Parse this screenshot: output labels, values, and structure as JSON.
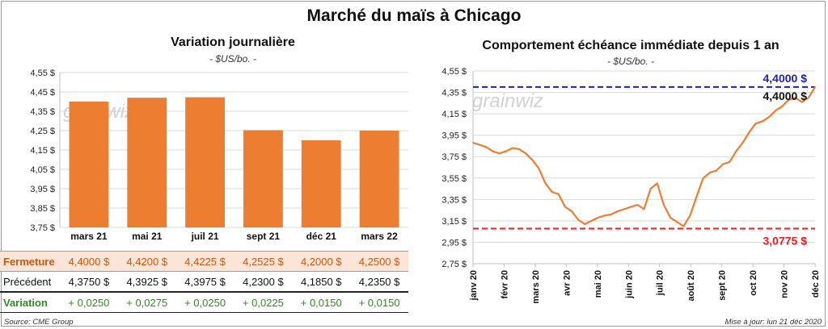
{
  "title": "Marché du maïs à Chicago",
  "source": "Source: CME Group",
  "updated": "Mise à jour: lun 21 déc 2020",
  "chart_data": [
    {
      "type": "bar",
      "title": "Variation journalière",
      "unit": "- $US/bo. -",
      "watermark": "grainwiz",
      "categories": [
        "mars 21",
        "mai 21",
        "juil 21",
        "sept 21",
        "déc 21",
        "mars 22"
      ],
      "values": [
        4.4,
        4.42,
        4.4225,
        4.2525,
        4.2,
        4.25
      ],
      "ylim": [
        3.75,
        4.55
      ],
      "yticks": [
        "4,55 $",
        "4,45 $",
        "4,35 $",
        "4,25 $",
        "4,15 $",
        "4,05 $",
        "3,95 $",
        "3,85 $",
        "3,75 $"
      ],
      "grid": true,
      "bar_color": "#ED7D31",
      "table": {
        "rows": [
          {
            "label": "Fermeture",
            "values": [
              "4,4000 $",
              "4,4200 $",
              "4,4225 $",
              "4,2525 $",
              "4,2000 $",
              "4,2500 $"
            ],
            "color": "#C65911",
            "bg": "#FCE4D6"
          },
          {
            "label": "Précédent",
            "values": [
              "4,3750 $",
              "4,3925 $",
              "4,3975 $",
              "4,2300 $",
              "4,1850 $",
              "4,2350 $"
            ],
            "color": "#111111"
          },
          {
            "label": "Variation",
            "values": [
              "+ 0,0250",
              "+ 0,0275",
              "+ 0,0250",
              "+ 0,0225",
              "+ 0,0150",
              "+ 0,0150"
            ],
            "color": "#2E8B1E"
          }
        ]
      }
    },
    {
      "type": "line",
      "title": "Comportement  échéance immédiate depuis 1 an",
      "unit": "- $US/bo. -",
      "watermark": "grainwiz",
      "x_labels": [
        "janv 20",
        "févr 20",
        "mars 20",
        "avr 20",
        "mai 20",
        "juin 20",
        "juil 20",
        "août 20",
        "sept 20",
        "oct 20",
        "nov 20",
        "déc 20"
      ],
      "x": [
        "2019-12-23",
        "2019-12-30",
        "2020-01-06",
        "2020-01-13",
        "2020-01-20",
        "2020-01-27",
        "2020-02-03",
        "2020-02-10",
        "2020-02-17",
        "2020-02-24",
        "2020-03-02",
        "2020-03-09",
        "2020-03-16",
        "2020-03-23",
        "2020-03-30",
        "2020-04-06",
        "2020-04-13",
        "2020-04-20",
        "2020-04-27",
        "2020-05-04",
        "2020-05-11",
        "2020-05-18",
        "2020-05-25",
        "2020-06-01",
        "2020-06-08",
        "2020-06-15",
        "2020-06-22",
        "2020-06-29",
        "2020-07-06",
        "2020-07-13",
        "2020-07-20",
        "2020-07-27",
        "2020-08-03",
        "2020-08-10",
        "2020-08-17",
        "2020-08-24",
        "2020-08-31",
        "2020-09-07",
        "2020-09-14",
        "2020-09-21",
        "2020-09-28",
        "2020-10-05",
        "2020-10-12",
        "2020-10-19",
        "2020-10-26",
        "2020-11-02",
        "2020-11-09",
        "2020-11-16",
        "2020-11-23",
        "2020-11-30",
        "2020-12-07",
        "2020-12-14",
        "2020-12-21"
      ],
      "values": [
        3.88,
        3.86,
        3.84,
        3.8,
        3.78,
        3.8,
        3.83,
        3.82,
        3.78,
        3.72,
        3.64,
        3.5,
        3.42,
        3.4,
        3.28,
        3.24,
        3.16,
        3.12,
        3.15,
        3.18,
        3.2,
        3.21,
        3.24,
        3.26,
        3.28,
        3.3,
        3.26,
        3.45,
        3.5,
        3.3,
        3.18,
        3.14,
        3.1,
        3.2,
        3.38,
        3.55,
        3.6,
        3.62,
        3.68,
        3.7,
        3.8,
        3.88,
        3.98,
        4.06,
        4.08,
        4.12,
        4.18,
        4.22,
        4.28,
        4.3,
        4.26,
        4.3,
        4.4
      ],
      "ylim": [
        2.75,
        4.55
      ],
      "yticks": [
        "4,55 $",
        "4,35 $",
        "4,15 $",
        "3,95 $",
        "3,75 $",
        "3,55 $",
        "3,35 $",
        "3,15 $",
        "2,95 $",
        "2,75 $"
      ],
      "line_color": "#ED7D31",
      "grid": true,
      "reference_lines": [
        {
          "value": 4.4,
          "label": "4,4000 $",
          "color": "#1F1FB4"
        },
        {
          "value": 3.0775,
          "label": "3,0775 $",
          "color": "#E61E1E"
        }
      ],
      "last_label": "4,4000 $"
    }
  ]
}
